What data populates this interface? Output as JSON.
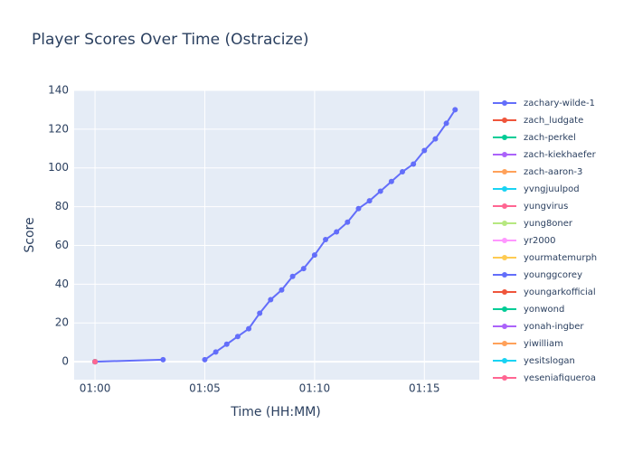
{
  "chart_data": {
    "type": "line",
    "title": "Player Scores Over Time (Ostracize)",
    "x_label": "Time (HH:MM)",
    "y_label": "Score",
    "xlim": [
      59.05,
      77.5
    ],
    "ylim": [
      -9.3,
      140
    ],
    "xticks": [
      {
        "value": 60,
        "label": "01:00"
      },
      {
        "value": 65,
        "label": "01:05"
      },
      {
        "value": 70,
        "label": "01:10"
      },
      {
        "value": 75,
        "label": "01:15"
      }
    ],
    "yticks": [
      0,
      20,
      40,
      60,
      80,
      100,
      120,
      140
    ],
    "grid": true,
    "legend": "right",
    "series": [
      {
        "name": "zachary-wilde-1",
        "color": "#636efa",
        "x": [
          60,
          63.1,
          64,
          65,
          65.5,
          66,
          66.5,
          67,
          67.5,
          68,
          68.5,
          69,
          69.5,
          70,
          70.5,
          71,
          71.5,
          72,
          72.5,
          73,
          73.5,
          74,
          74.5,
          75,
          75.5,
          76,
          76.4
        ],
        "values": [
          0,
          1,
          null,
          1,
          5,
          9,
          13,
          17,
          25,
          32,
          37,
          44,
          48,
          55,
          63,
          67,
          72,
          79,
          83,
          88,
          93,
          98,
          102,
          109,
          115,
          123,
          130
        ]
      },
      {
        "name": "zach_ludgate",
        "color": "#EF553B",
        "x": [
          60
        ],
        "values": [
          0
        ]
      },
      {
        "name": "zach-perkel",
        "color": "#00cc96",
        "x": [
          60
        ],
        "values": [
          0
        ]
      },
      {
        "name": "zach-kiekhaefer",
        "color": "#ab63fa",
        "x": [
          60
        ],
        "values": [
          0
        ]
      },
      {
        "name": "zach-aaron-3",
        "color": "#FFA15A",
        "x": [
          60
        ],
        "values": [
          0
        ]
      },
      {
        "name": "yvngjuulpod",
        "color": "#19d3f3",
        "x": [
          60
        ],
        "values": [
          0
        ]
      },
      {
        "name": "yungvirus",
        "color": "#FF6692",
        "x": [
          60
        ],
        "values": [
          0
        ]
      },
      {
        "name": "yung8oner",
        "color": "#B6E880",
        "x": [
          60
        ],
        "values": [
          0
        ]
      },
      {
        "name": "yr2000",
        "color": "#FF97FF",
        "x": [
          60
        ],
        "values": [
          0
        ]
      },
      {
        "name": "yourmatemurph",
        "color": "#FECB52",
        "x": [
          60
        ],
        "values": [
          0
        ]
      },
      {
        "name": "younggcorey",
        "color": "#636efa",
        "x": [
          60
        ],
        "values": [
          0
        ]
      },
      {
        "name": "youngarkofficial",
        "color": "#EF553B",
        "x": [
          60
        ],
        "values": [
          0
        ]
      },
      {
        "name": "yonwond",
        "color": "#00cc96",
        "x": [
          60
        ],
        "values": [
          0
        ]
      },
      {
        "name": "yonah-ingber",
        "color": "#ab63fa",
        "x": [
          60
        ],
        "values": [
          0
        ]
      },
      {
        "name": "yiwilliam",
        "color": "#FFA15A",
        "x": [
          60
        ],
        "values": [
          0
        ]
      },
      {
        "name": "yesitslogan",
        "color": "#19d3f3",
        "x": [
          60
        ],
        "values": [
          0
        ]
      },
      {
        "name": "yeseniafigueroa",
        "color": "#FF6692",
        "x": [
          60
        ],
        "values": [
          0
        ]
      }
    ]
  }
}
